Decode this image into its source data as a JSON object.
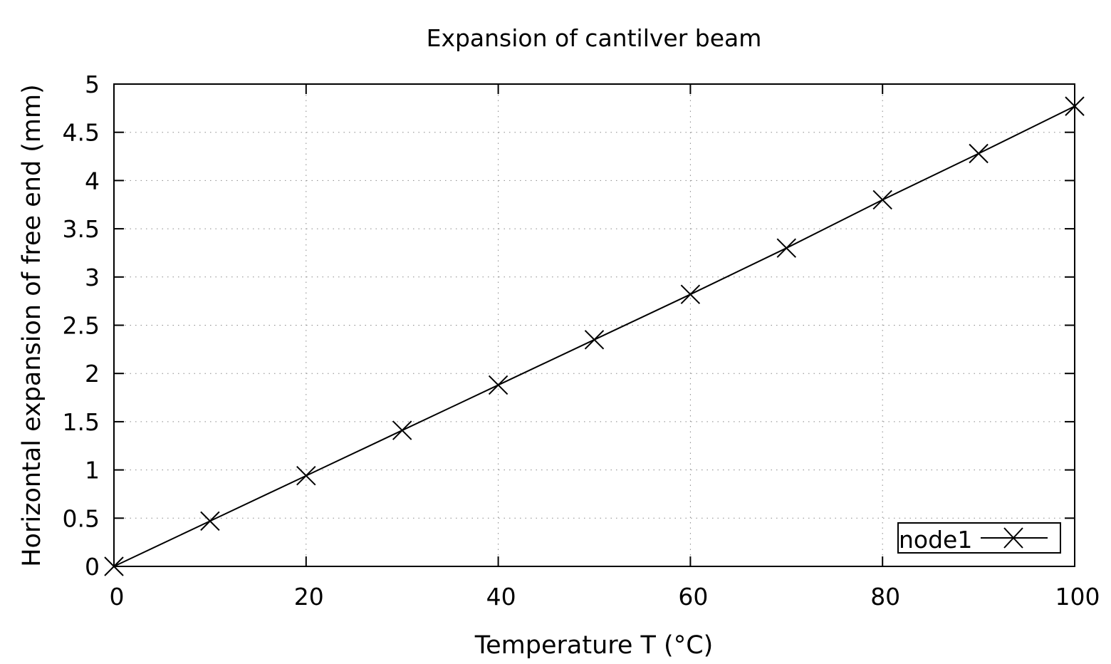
{
  "chart_data": {
    "type": "line",
    "title": "Expansion of cantilver beam",
    "xlabel": "Temperature T (°C)",
    "ylabel": "Horizontal expansion of free end (mm)",
    "xlim": [
      0,
      100
    ],
    "ylim": [
      0,
      5
    ],
    "xticks": [
      0,
      20,
      40,
      60,
      80,
      100
    ],
    "xtick_labels": [
      "0",
      "20",
      "40",
      "60",
      "80",
      "100"
    ],
    "yticks": [
      0,
      0.5,
      1,
      1.5,
      2,
      2.5,
      3,
      3.5,
      4,
      4.5,
      5
    ],
    "ytick_labels": [
      "0",
      "0.5",
      "1",
      "1.5",
      "2",
      "2.5",
      "3",
      "3.5",
      "4",
      "4.5",
      "5"
    ],
    "grid": true,
    "legend_position": "bottom-right",
    "series": [
      {
        "name": "node1",
        "marker": "x",
        "color": "#000000",
        "x": [
          0,
          10,
          20,
          30,
          40,
          50,
          60,
          70,
          80,
          90,
          100
        ],
        "y": [
          0,
          0.47,
          0.94,
          1.41,
          1.88,
          2.35,
          2.82,
          3.3,
          3.8,
          4.28,
          4.77
        ]
      }
    ]
  }
}
